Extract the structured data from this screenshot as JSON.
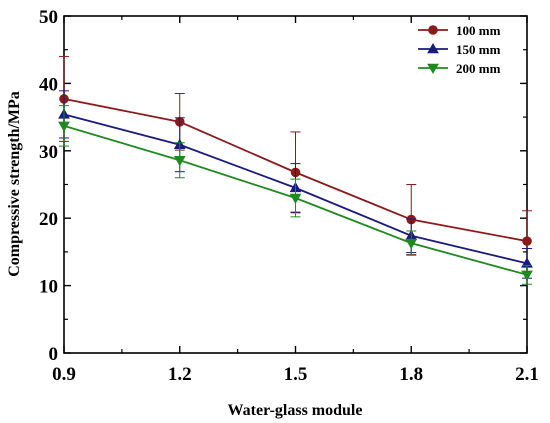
{
  "chart_data": {
    "type": "line",
    "xlabel": "Water-glass module",
    "ylabel": "Compressive strength/MPa",
    "x": [
      0.9,
      1.2,
      1.5,
      1.8,
      2.1
    ],
    "x_ticks": [
      "0.9",
      "1.2",
      "1.5",
      "1.8",
      "2.1"
    ],
    "y_ticks": [
      "0",
      "10",
      "20",
      "30",
      "40",
      "50"
    ],
    "xlim": [
      0.9,
      2.1
    ],
    "ylim": [
      0,
      50
    ],
    "grid": false,
    "legend_position": "top-right",
    "series": [
      {
        "name": "100 mm",
        "color": "#8b1a1a",
        "marker": "circle",
        "values": [
          37.7,
          34.3,
          26.8,
          19.8,
          16.6
        ],
        "error_plus": [
          6.3,
          4.2,
          6.0,
          5.2,
          4.5
        ],
        "error_minus": [
          6.3,
          4.2,
          6.0,
          5.2,
          4.5
        ]
      },
      {
        "name": "150 mm",
        "color": "#1a1a80",
        "marker": "triangle-up",
        "values": [
          35.4,
          30.9,
          24.5,
          17.4,
          13.3
        ],
        "error_plus": [
          3.5,
          4.0,
          3.6,
          2.5,
          2.2
        ],
        "error_minus": [
          3.5,
          4.0,
          3.6,
          2.5,
          2.2
        ]
      },
      {
        "name": "200 mm",
        "color": "#1f8a1f",
        "marker": "triangle-down",
        "values": [
          33.7,
          28.6,
          23.0,
          16.3,
          11.6
        ],
        "error_plus": [
          3.0,
          2.6,
          2.8,
          1.8,
          1.4
        ],
        "error_minus": [
          3.0,
          2.6,
          2.8,
          1.8,
          1.4
        ]
      }
    ]
  }
}
